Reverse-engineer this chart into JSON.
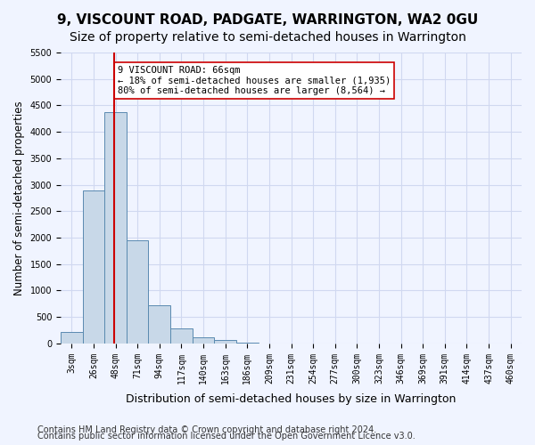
{
  "title": "9, VISCOUNT ROAD, PADGATE, WARRINGTON, WA2 0GU",
  "subtitle": "Size of property relative to semi-detached houses in Warrington",
  "xlabel": "Distribution of semi-detached houses by size in Warrington",
  "ylabel": "Number of semi-detached properties",
  "footer1": "Contains HM Land Registry data © Crown copyright and database right 2024.",
  "footer2": "Contains public sector information licensed under the Open Government Licence v3.0.",
  "bin_labels": [
    "3sqm",
    "26sqm",
    "48sqm",
    "71sqm",
    "94sqm",
    "117sqm",
    "140sqm",
    "163sqm",
    "186sqm",
    "209sqm",
    "231sqm",
    "254sqm",
    "277sqm",
    "300sqm",
    "323sqm",
    "346sqm",
    "369sqm",
    "391sqm",
    "414sqm",
    "437sqm",
    "460sqm"
  ],
  "bar_values": [
    220,
    2900,
    4380,
    1950,
    730,
    280,
    110,
    60,
    20,
    5,
    0,
    0,
    0,
    0,
    0,
    0,
    0,
    0,
    0,
    0,
    0
  ],
  "bar_color": "#c8d8e8",
  "bar_edge_color": "#5a8ab0",
  "bar_width": 1.0,
  "property_line_x": 1.95,
  "red_line_color": "#cc0000",
  "annotation_text": "9 VISCOUNT ROAD: 66sqm\n← 18% of semi-detached houses are smaller (1,935)\n80% of semi-detached houses are larger (8,564) →",
  "annotation_box_color": "#ffffff",
  "annotation_box_edge": "#cc0000",
  "ylim": [
    0,
    5500
  ],
  "yticks": [
    0,
    500,
    1000,
    1500,
    2000,
    2500,
    3000,
    3500,
    4000,
    4500,
    5000,
    5500
  ],
  "background_color": "#f0f4ff",
  "grid_color": "#d0d8f0",
  "title_fontsize": 11,
  "subtitle_fontsize": 10,
  "xlabel_fontsize": 9,
  "ylabel_fontsize": 8.5,
  "tick_fontsize": 7,
  "footer_fontsize": 7
}
